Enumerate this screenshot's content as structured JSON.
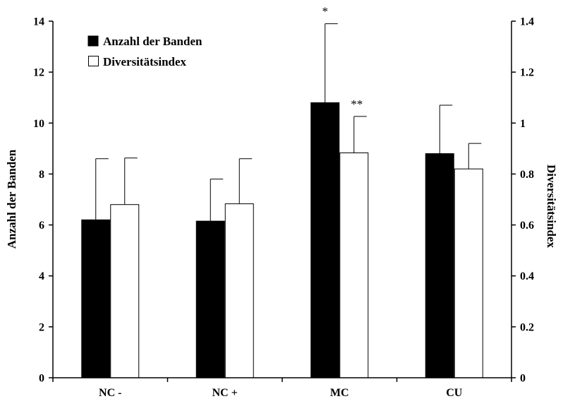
{
  "chart_data": {
    "type": "bar",
    "categories": [
      "NC -",
      "NC +",
      "MC",
      "CU"
    ],
    "series": [
      {
        "name": "Anzahl der Banden",
        "axis": "left",
        "color": "#000000",
        "values": [
          6.2,
          6.15,
          10.8,
          8.8
        ],
        "error": [
          2.4,
          1.65,
          3.1,
          1.9
        ]
      },
      {
        "name": "Diversitätsindex",
        "axis": "right",
        "color": "#ffffff",
        "values": [
          0.68,
          0.683,
          0.883,
          0.82
        ],
        "error": [
          0.183,
          0.177,
          0.143,
          0.1
        ]
      }
    ],
    "ylabel_left": "Anzahl der Banden",
    "ylabel_right": "Diversitätsindex",
    "ylim_left": [
      0,
      14
    ],
    "ylim_right": [
      0,
      1.4
    ],
    "yticks_left": [
      "0",
      "2",
      "4",
      "6",
      "8",
      "10",
      "12",
      "14"
    ],
    "yticks_right": [
      "0",
      "0.2",
      "0.4",
      "0.6",
      "0.8",
      "1",
      "1.2",
      "1.4"
    ],
    "annotations": [
      {
        "text": "*",
        "category": "MC",
        "series": "Anzahl der Banden"
      },
      {
        "text": "**",
        "category": "MC",
        "series": "Diversitätsindex"
      }
    ],
    "legend_position": "top-left",
    "grid": false
  }
}
